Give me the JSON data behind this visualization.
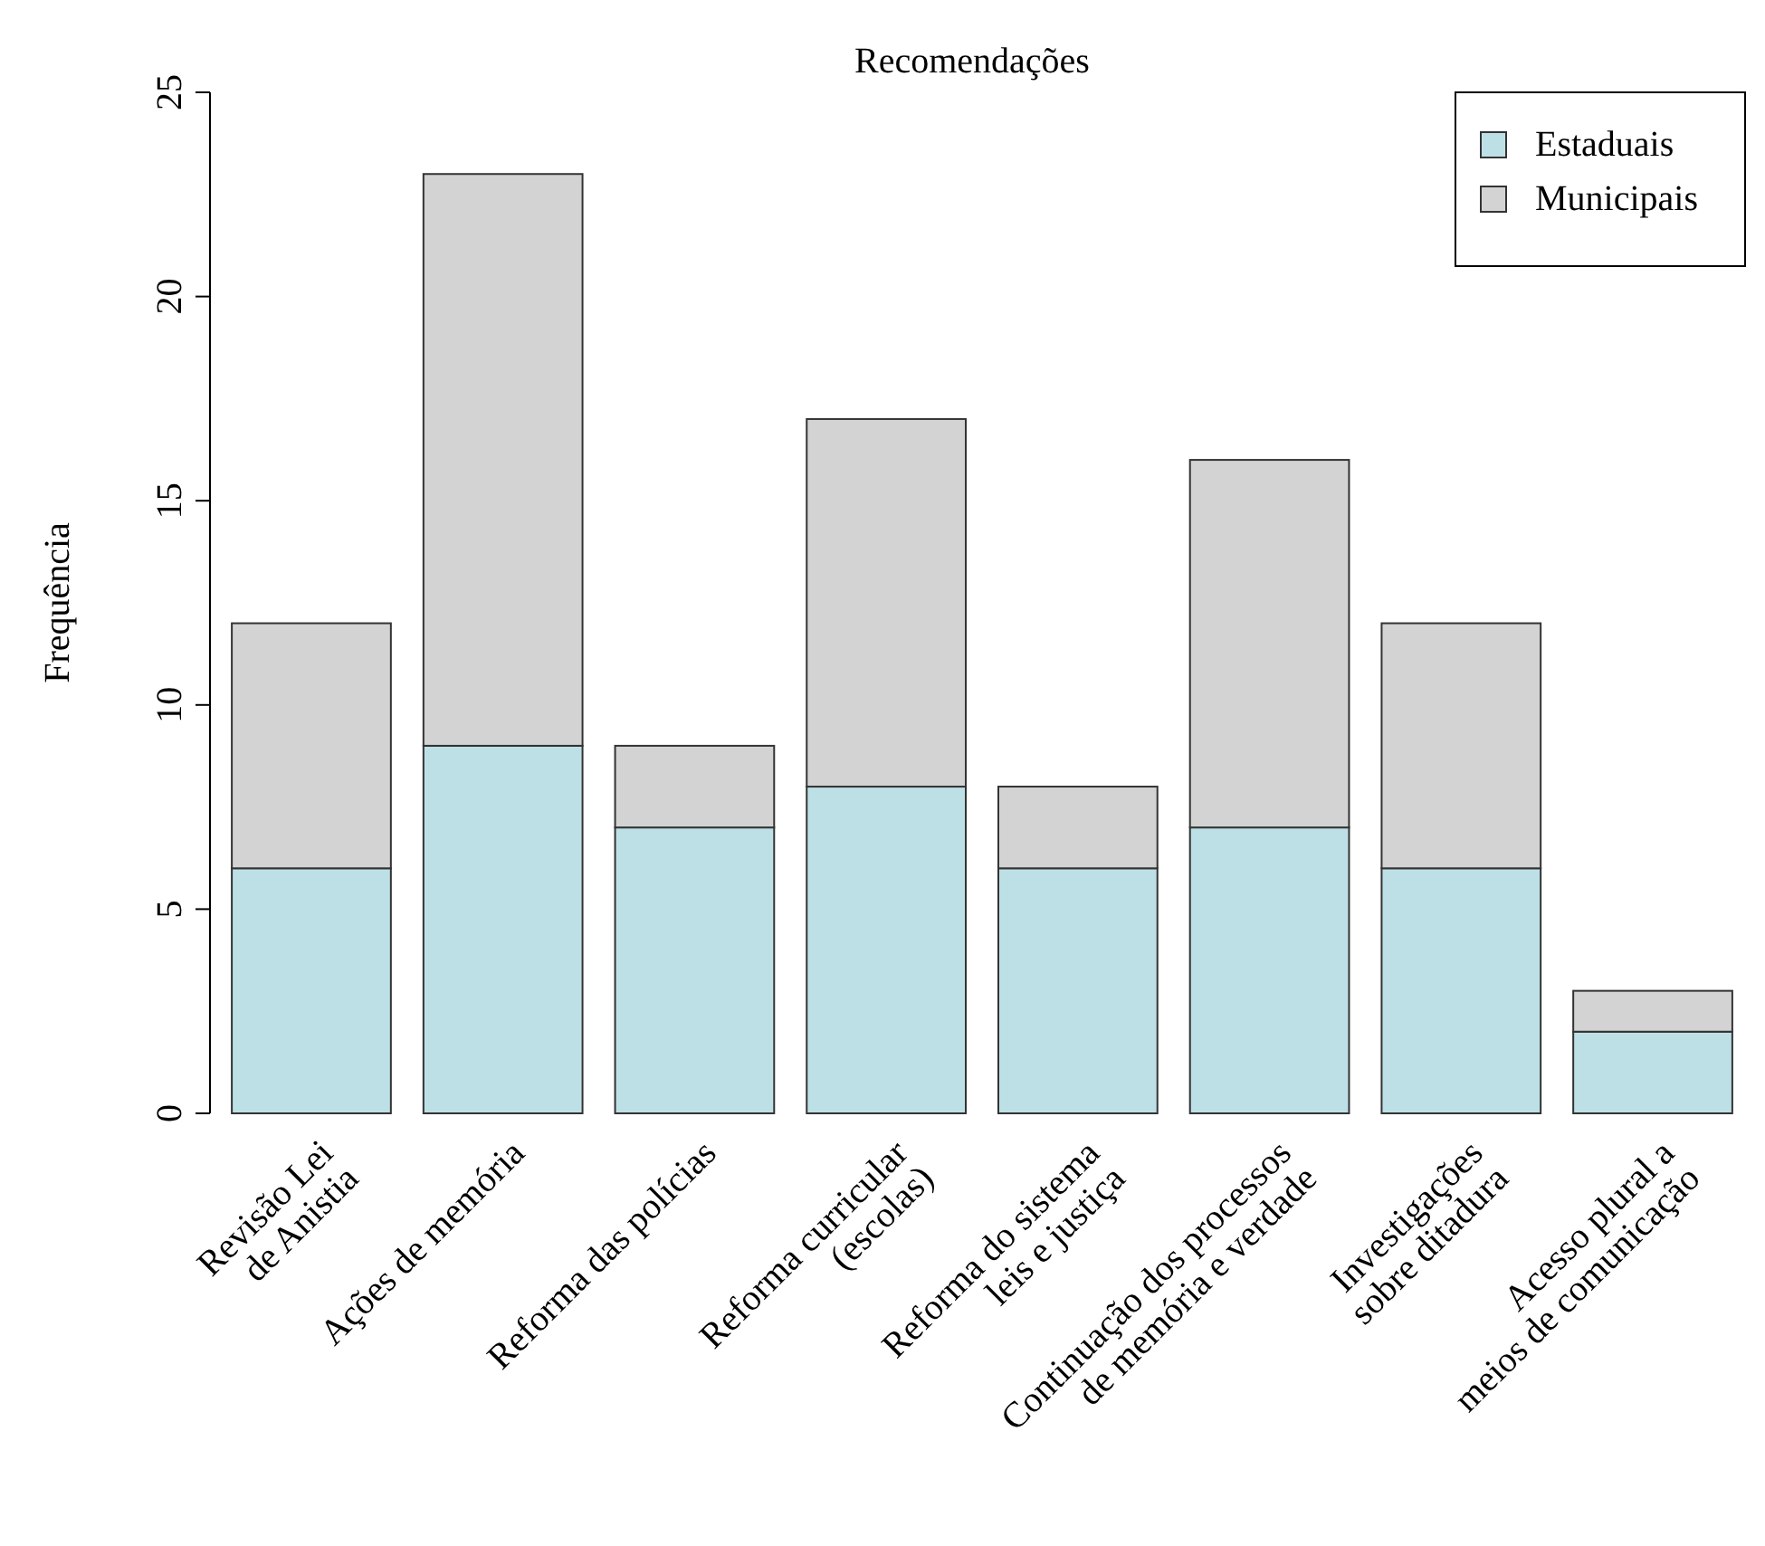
{
  "chart_data": {
    "type": "bar",
    "title": "Recomendações",
    "ylabel": "Frequência",
    "stacked": true,
    "legend": "top right",
    "categories": [
      "Revisão Lei\nde Anistia",
      "Ações de memória",
      "Reforma das polícias",
      "Reforma curricular\n(escolas)",
      "Reforma do sistema\nleis e justiça",
      "Continuação dos processos\nde memória e verdade",
      "Investigações\nsobre ditadura",
      "Acesso plural a\nmeios de comunicação"
    ],
    "series": [
      {
        "name": "Estaduais",
        "color": "#bde0e6",
        "values": [
          6,
          9,
          7,
          8,
          6,
          7,
          6,
          2
        ]
      },
      {
        "name": "Municipais",
        "color": "#d3d3d3",
        "values": [
          6,
          14,
          2,
          9,
          2,
          9,
          6,
          1
        ]
      }
    ],
    "ylim": [
      0,
      25
    ],
    "yticks": [
      0,
      5,
      10,
      15,
      20,
      25
    ]
  }
}
